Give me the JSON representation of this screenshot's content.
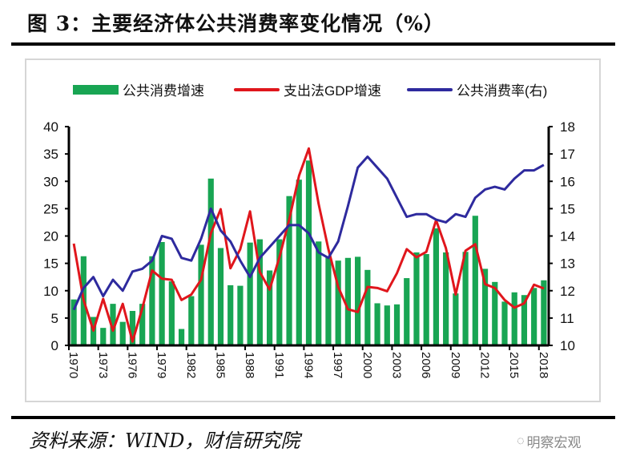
{
  "title": "图 3：主要经济体公共消费率变化情况（%）",
  "source": "资料来源：WIND，财信研究院",
  "watermark": "明察宏观",
  "chart_data": {
    "type": "bar+line",
    "x": [
      1970,
      1971,
      1972,
      1973,
      1974,
      1975,
      1976,
      1977,
      1978,
      1979,
      1980,
      1981,
      1982,
      1983,
      1984,
      1985,
      1986,
      1987,
      1988,
      1989,
      1990,
      1991,
      1992,
      1993,
      1994,
      1995,
      1996,
      1997,
      1998,
      1999,
      2000,
      2001,
      2002,
      2003,
      2004,
      2005,
      2006,
      2007,
      2008,
      2009,
      2010,
      2011,
      2012,
      2013,
      2014,
      2015,
      2016,
      2017,
      2018
    ],
    "xticks": [
      "1970",
      "1973",
      "1976",
      "1979",
      "1982",
      "1985",
      "1988",
      "1991",
      "1994",
      "1997",
      "2000",
      "2003",
      "2006",
      "2009",
      "2012",
      "2015",
      "2018"
    ],
    "y_left": {
      "range": [
        0,
        40
      ],
      "ticks": [
        "0",
        "5",
        "10",
        "15",
        "20",
        "25",
        "30",
        "35",
        "40"
      ]
    },
    "y_right": {
      "range": [
        10,
        18
      ],
      "ticks": [
        "10",
        "11",
        "12",
        "13",
        "14",
        "15",
        "16",
        "17",
        "18"
      ]
    },
    "legend_position": "top",
    "grid": false,
    "series": [
      {
        "name": "公共消费增速",
        "type": "bar",
        "axis": "left",
        "color": "#18a553",
        "values": [
          8.4,
          16.3,
          5.2,
          3.2,
          7.6,
          4.3,
          6.3,
          7.6,
          16.3,
          18.9,
          11.7,
          3.0,
          9.0,
          18.4,
          30.5,
          17.8,
          11.0,
          10.9,
          18.8,
          19.4,
          13.7,
          19.4,
          27.3,
          30.3,
          33.8,
          19.0,
          16.1,
          15.5,
          16.0,
          16.2,
          13.8,
          7.7,
          7.3,
          7.5,
          12.3,
          17.0,
          16.7,
          21.4,
          17.0,
          9.5,
          17.1,
          23.7,
          14.0,
          11.6,
          8.0,
          9.7,
          9.2,
          10.5,
          11.9
        ]
      },
      {
        "name": "支出法GDP增速",
        "type": "line",
        "axis": "left",
        "color": "#e0161c",
        "values": [
          18.6,
          8.3,
          2.7,
          8.5,
          2.7,
          7.6,
          0.7,
          6.8,
          13.7,
          12.2,
          12.0,
          8.3,
          9.3,
          12.0,
          20.5,
          24.9,
          14.1,
          17.6,
          24.5,
          13.4,
          10.2,
          16.1,
          23.0,
          31.0,
          36.0,
          25.9,
          17.6,
          10.7,
          6.6,
          6.1,
          10.7,
          10.5,
          9.9,
          13.2,
          17.6,
          16.1,
          17.1,
          22.9,
          17.8,
          9.3,
          17.3,
          18.5,
          11.2,
          10.5,
          8.3,
          6.9,
          7.7,
          11.1,
          10.4
        ]
      },
      {
        "name": "公共消费率(右)",
        "type": "line",
        "axis": "right",
        "color": "#2e2a9e",
        "values": [
          11.3,
          12.1,
          12.5,
          11.8,
          12.4,
          12.0,
          12.7,
          12.8,
          13.1,
          14.0,
          13.9,
          13.2,
          13.1,
          13.9,
          15.0,
          14.2,
          13.8,
          13.1,
          12.5,
          13.2,
          13.6,
          14.0,
          14.4,
          14.4,
          14.1,
          13.4,
          13.2,
          13.8,
          15.1,
          16.5,
          16.9,
          16.5,
          16.1,
          15.4,
          14.7,
          14.8,
          14.8,
          14.6,
          14.5,
          14.8,
          14.7,
          15.4,
          15.7,
          15.8,
          15.7,
          16.1,
          16.4,
          16.4,
          16.6
        ]
      }
    ]
  }
}
